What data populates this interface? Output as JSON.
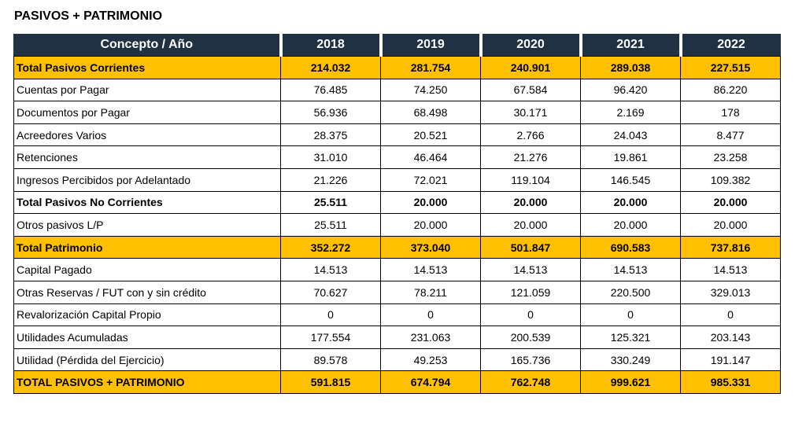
{
  "title": "PASIVOS + PATRIMONIO",
  "colors": {
    "header_bg": "#1f3143",
    "highlight": "#ffc000"
  },
  "table": {
    "header": [
      "Concepto  /  Año",
      "2018",
      "2019",
      "2020",
      "2021",
      "2022"
    ],
    "rows": [
      {
        "label": "Total Pasivos Corrientes",
        "style": "highlight",
        "values": [
          "214.032",
          "281.754",
          "240.901",
          "289.038",
          "227.515"
        ]
      },
      {
        "label": "Cuentas por Pagar",
        "style": "normal",
        "values": [
          "76.485",
          "74.250",
          "67.584",
          "96.420",
          "86.220"
        ]
      },
      {
        "label": "Documentos por Pagar",
        "style": "normal",
        "values": [
          "56.936",
          "68.498",
          "30.171",
          "2.169",
          "178"
        ]
      },
      {
        "label": "Acreedores Varios",
        "style": "normal",
        "values": [
          "28.375",
          "20.521",
          "2.766",
          "24.043",
          "8.477"
        ]
      },
      {
        "label": "Retenciones",
        "style": "normal",
        "values": [
          "31.010",
          "46.464",
          "21.276",
          "19.861",
          "23.258"
        ]
      },
      {
        "label": "Ingresos Percibidos por Adelantado",
        "style": "normal",
        "values": [
          "21.226",
          "72.021",
          "119.104",
          "146.545",
          "109.382"
        ]
      },
      {
        "label": "Total Pasivos No Corrientes",
        "style": "bold",
        "values": [
          "25.511",
          "20.000",
          "20.000",
          "20.000",
          "20.000"
        ]
      },
      {
        "label": "Otros pasivos L/P",
        "style": "normal",
        "values": [
          "25.511",
          "20.000",
          "20.000",
          "20.000",
          "20.000"
        ]
      },
      {
        "label": "Total Patrimonio",
        "style": "highlight",
        "values": [
          "352.272",
          "373.040",
          "501.847",
          "690.583",
          "737.816"
        ]
      },
      {
        "label": "Capital Pagado",
        "style": "normal",
        "values": [
          "14.513",
          "14.513",
          "14.513",
          "14.513",
          "14.513"
        ]
      },
      {
        "label": "Otras Reservas / FUT con y sin crédito",
        "style": "normal",
        "values": [
          "70.627",
          "78.211",
          "121.059",
          "220.500",
          "329.013"
        ]
      },
      {
        "label": "Revalorización Capital Propio",
        "style": "normal",
        "values": [
          "0",
          "0",
          "0",
          "0",
          "0"
        ]
      },
      {
        "label": "Utilidades Acumuladas",
        "style": "normal",
        "values": [
          "177.554",
          "231.063",
          "200.539",
          "125.321",
          "203.143"
        ]
      },
      {
        "label": "Utilidad (Pérdida del Ejercicio)",
        "style": "normal",
        "values": [
          "89.578",
          "49.253",
          "165.736",
          "330.249",
          "191.147"
        ]
      },
      {
        "label": "TOTAL PASIVOS + PATRIMONIO",
        "style": "highlight",
        "values": [
          "591.815",
          "674.794",
          "762.748",
          "999.621",
          "985.331"
        ]
      }
    ]
  }
}
